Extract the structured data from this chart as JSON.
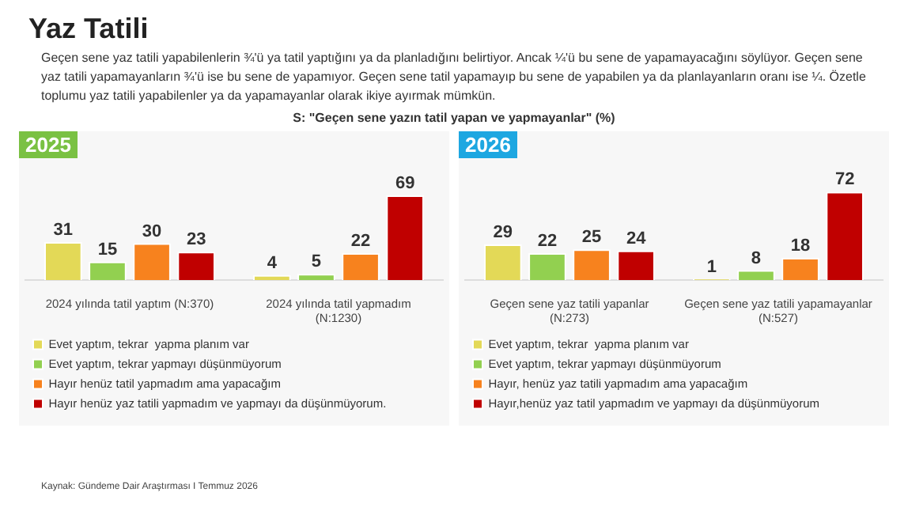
{
  "chart_data": [
    {
      "type": "other",
      "title": "Yaz Tatili",
      "subtitle": "Geçen sene yaz tatili yapabilenlerin ¾'ü ya tatil yaptığını ya da planladığını belirtiyor. Ancak ¼'ü bu sene de yapamayacağını söylüyor. Geçen sene yaz tatili yapamayanların ¾'ü  ise bu sene de yapamıyor. Geçen sene tatil yapamayıp bu sene de yapabilen ya da planlayanların oranı ise ¼. Özetle toplumu yaz tatili yapabilenler ya da yapamayanlar olarak ikiye ayırmak mümkün.",
      "annotations": [
        "S: \"Geçen sene yazın tatil yapan ve yapmayanlar\" (%)",
        "Kaynak: Gündeme Dair Araştırması I Temmuz 2026"
      ]
    },
    {
      "type": "bar",
      "title": "2025",
      "categories": [
        "2024 yılında tatil yaptım (N:370)",
        "2024 yılında tatil yapmadım (N:1230)"
      ],
      "data_labels": true,
      "legend": "bottom",
      "series": [
        {
          "name": "Evet yaptım, tekrar  yapma planım var",
          "color": "#e3d957",
          "values": [
            31,
            4
          ]
        },
        {
          "name": "Evet yaptım, tekrar yapmayı düşünmüyorum",
          "color": "#92d050",
          "values": [
            15,
            5
          ]
        },
        {
          "name": "Hayır henüz tatil yapmadım ama yapacağım",
          "color": "#f7821e",
          "values": [
            30,
            22
          ]
        },
        {
          "name": "Hayır henüz yaz tatili yapmadım ve yapmayı da düşünmüyorum.",
          "color": "#c00000",
          "values": [
            23,
            69
          ]
        }
      ]
    },
    {
      "type": "bar",
      "title": "2026",
      "categories": [
        "Geçen sene yaz tatili yapanlar (N:273)",
        "Geçen sene yaz tatili yapamayanlar (N:527)"
      ],
      "data_labels": true,
      "legend": "bottom",
      "series": [
        {
          "name": "Evet yaptım, tekrar  yapma planım var",
          "color": "#e3d957",
          "values": [
            29,
            1
          ]
        },
        {
          "name": "Evet yaptım, tekrar yapmayı düşünmüyorum",
          "color": "#92d050",
          "values": [
            22,
            8
          ]
        },
        {
          "name": "Hayır, henüz yaz tatili yapmadım ama yapacağım",
          "color": "#f7821e",
          "values": [
            25,
            18
          ]
        },
        {
          "name": "Hayır,henüz yaz tatil yapmadım ve yapmayı da düşünmüyorum",
          "color": "#c00000",
          "values": [
            24,
            72
          ]
        }
      ]
    }
  ]
}
